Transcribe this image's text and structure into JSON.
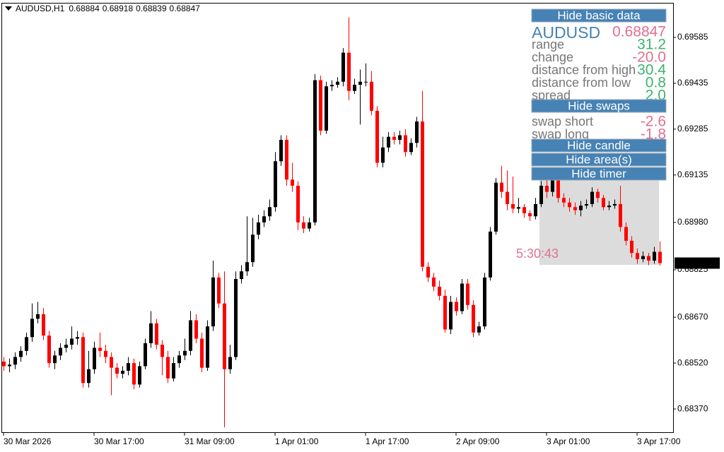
{
  "chart_data": {
    "type": "candlestick",
    "title": "AUDUSD,H1",
    "open": [
      0.68525,
      0.6851,
      0.68515,
      0.6854,
      0.6856,
      0.68605,
      0.68665,
      0.6868,
      0.6861,
      0.6852,
      0.68545,
      0.6857,
      0.6858,
      0.686,
      0.68605,
      0.68455,
      0.685,
      0.6857,
      0.6856,
      0.6854,
      0.68505,
      0.68485,
      0.68495,
      0.6852,
      0.6845,
      0.6851,
      0.68585,
      0.6865,
      0.6858,
      0.6854,
      0.6847,
      0.6852,
      0.68545,
      0.6856,
      0.6866,
      0.686,
      0.68505,
      0.6864,
      0.688,
      0.68715,
      0.685,
      0.6854,
      0.68795,
      0.6882,
      0.6885,
      0.6894,
      0.6898,
      0.69,
      0.6903,
      0.6918,
      0.6925,
      0.6912,
      0.691,
      0.6898,
      0.6896,
      0.6898,
      0.69445,
      0.6928,
      0.69425,
      0.6943,
      0.6944,
      0.69535,
      0.6941,
      0.6943,
      0.6944,
      0.6944,
      0.69345,
      0.69175,
      0.69225,
      0.6926,
      0.6925,
      0.69265,
      0.6921,
      0.6924,
      0.6931,
      0.68835,
      0.688,
      0.6877,
      0.6874,
      0.6863,
      0.6872,
      0.6869,
      0.6878,
      0.6871,
      0.6862,
      0.6864,
      0.688,
      0.6895,
      0.6911,
      0.6908,
      0.6904,
      0.69025,
      0.6903,
      0.6901,
      0.69,
      0.6904,
      0.691,
      0.6908,
      0.6912,
      0.6906,
      0.69045,
      0.6903,
      0.6902,
      0.69035,
      0.6904,
      0.6908,
      0.6906,
      0.6903,
      0.69035,
      0.6904,
      0.68965,
      0.6892,
      0.6888,
      0.6886,
      0.6887,
      0.68855,
      0.68884
    ],
    "high": [
      0.6854,
      0.68535,
      0.68555,
      0.68575,
      0.6862,
      0.68715,
      0.6872,
      0.687,
      0.68625,
      0.6856,
      0.68585,
      0.686,
      0.6864,
      0.68625,
      0.6862,
      0.6856,
      0.6859,
      0.6862,
      0.6858,
      0.68555,
      0.6852,
      0.6851,
      0.6854,
      0.68535,
      0.68525,
      0.686,
      0.6869,
      0.68665,
      0.68595,
      0.6856,
      0.6854,
      0.6856,
      0.686,
      0.6869,
      0.6868,
      0.6862,
      0.6866,
      0.68855,
      0.68815,
      0.6882,
      0.6858,
      0.6882,
      0.6884,
      0.69,
      0.68995,
      0.69005,
      0.6902,
      0.69055,
      0.6921,
      0.69265,
      0.69265,
      0.69175,
      0.69115,
      0.69,
      0.68995,
      0.69465,
      0.6946,
      0.6944,
      0.69445,
      0.69455,
      0.6955,
      0.6965,
      0.6945,
      0.6948,
      0.695,
      0.69475,
      0.6936,
      0.6926,
      0.69275,
      0.69275,
      0.6928,
      0.69285,
      0.69255,
      0.69325,
      0.6941,
      0.6885,
      0.68815,
      0.6879,
      0.6876,
      0.6874,
      0.68735,
      0.68795,
      0.68795,
      0.68725,
      0.68655,
      0.68815,
      0.68965,
      0.69125,
      0.69165,
      0.6915,
      0.6913,
      0.6906,
      0.6904,
      0.6902,
      0.6906,
      0.69115,
      0.6912,
      0.69135,
      0.6913,
      0.69075,
      0.6906,
      0.69045,
      0.6905,
      0.69055,
      0.69095,
      0.6909,
      0.6907,
      0.6905,
      0.69055,
      0.691,
      0.6898,
      0.68935,
      0.68895,
      0.68885,
      0.6888,
      0.689,
      0.68918
    ],
    "low": [
      0.68495,
      0.6849,
      0.685,
      0.68525,
      0.68545,
      0.6859,
      0.6865,
      0.68595,
      0.68505,
      0.685,
      0.6853,
      0.68555,
      0.68565,
      0.6858,
      0.6844,
      0.6844,
      0.68485,
      0.6854,
      0.6852,
      0.68415,
      0.6847,
      0.6847,
      0.6848,
      0.68435,
      0.6844,
      0.685,
      0.6857,
      0.68565,
      0.6848,
      0.68455,
      0.6846,
      0.68505,
      0.6853,
      0.68545,
      0.68585,
      0.6849,
      0.68495,
      0.68625,
      0.687,
      0.6831,
      0.68485,
      0.6853,
      0.6878,
      0.68805,
      0.68835,
      0.68925,
      0.68965,
      0.68985,
      0.69015,
      0.69165,
      0.691,
      0.6908,
      0.68955,
      0.68945,
      0.6895,
      0.6897,
      0.69265,
      0.6927,
      0.6941,
      0.6942,
      0.69425,
      0.6938,
      0.694,
      0.693,
      0.69425,
      0.6933,
      0.6916,
      0.6916,
      0.6921,
      0.69235,
      0.69235,
      0.69195,
      0.692,
      0.69225,
      0.6882,
      0.68785,
      0.68755,
      0.68725,
      0.6862,
      0.68615,
      0.68675,
      0.6868,
      0.68695,
      0.68605,
      0.6861,
      0.6863,
      0.6879,
      0.6894,
      0.6906,
      0.6902,
      0.6901,
      0.6901,
      0.68995,
      0.68985,
      0.6899,
      0.6903,
      0.6906,
      0.69065,
      0.69045,
      0.6903,
      0.69015,
      0.69005,
      0.69,
      0.69025,
      0.6903,
      0.69045,
      0.6902,
      0.6902,
      0.69025,
      0.6895,
      0.68905,
      0.68865,
      0.68845,
      0.6885,
      0.6884,
      0.68845,
      0.68839
    ],
    "close": [
      0.6851,
      0.68515,
      0.6854,
      0.6856,
      0.68605,
      0.68665,
      0.6868,
      0.6861,
      0.6852,
      0.68545,
      0.6857,
      0.6858,
      0.686,
      0.68605,
      0.68455,
      0.685,
      0.6857,
      0.6856,
      0.6854,
      0.68505,
      0.68485,
      0.68495,
      0.6852,
      0.6845,
      0.6851,
      0.68585,
      0.6865,
      0.6858,
      0.6854,
      0.6847,
      0.6852,
      0.68545,
      0.6856,
      0.6866,
      0.686,
      0.68505,
      0.6864,
      0.688,
      0.68715,
      0.685,
      0.6854,
      0.68795,
      0.6882,
      0.6885,
      0.6894,
      0.6898,
      0.69,
      0.6903,
      0.6918,
      0.6925,
      0.6912,
      0.691,
      0.6898,
      0.6896,
      0.6898,
      0.69445,
      0.6928,
      0.69425,
      0.6943,
      0.6944,
      0.69535,
      0.6941,
      0.6943,
      0.6944,
      0.6944,
      0.69345,
      0.69175,
      0.69225,
      0.6926,
      0.6925,
      0.69265,
      0.6921,
      0.6924,
      0.6931,
      0.68835,
      0.688,
      0.6877,
      0.6874,
      0.6863,
      0.6872,
      0.6869,
      0.6878,
      0.6871,
      0.6862,
      0.6864,
      0.688,
      0.6895,
      0.6911,
      0.6908,
      0.6904,
      0.69025,
      0.6903,
      0.6901,
      0.69,
      0.6904,
      0.691,
      0.6908,
      0.6912,
      0.6906,
      0.69045,
      0.6903,
      0.6902,
      0.69035,
      0.6904,
      0.6908,
      0.6906,
      0.6903,
      0.69035,
      0.6904,
      0.68965,
      0.6892,
      0.6888,
      0.6886,
      0.6887,
      0.68855,
      0.68884,
      0.68847
    ],
    "up_color": "#000000",
    "down_color": "#ff0000",
    "ylim": [
      0.68294,
      0.69698
    ],
    "yticks": [
      0.69585,
      0.69435,
      0.69285,
      0.69135,
      {
        "value": 0.6898,
        "label": "0.68980"
      },
      0.68825,
      {
        "value": 0.6867,
        "label": "0.68670"
      },
      {
        "value": 0.6852,
        "label": "0.68520"
      },
      {
        "value": 0.6837,
        "label": "0.68370"
      }
    ],
    "xticks": [
      {
        "value": 0,
        "label": "30 Mar 2026"
      },
      {
        "value": 16,
        "label": "30 Mar 17:00"
      },
      {
        "value": 32,
        "label": "31 Mar 09:00"
      },
      {
        "value": 48,
        "label": "1 Apr 01:00"
      },
      {
        "value": 64,
        "label": "1 Apr 17:00"
      },
      {
        "value": 80,
        "label": "2 Apr 09:00"
      },
      {
        "value": 96,
        "label": "3 Apr 01:00"
      },
      {
        "value": 112,
        "label": "3 Apr 17:00"
      }
    ]
  },
  "panel": {
    "btn_basic": "Hide basic data",
    "symbol": "AUDUSD",
    "rows": [
      [
        "range",
        "31.2"
      ],
      [
        "change",
        "-20.0"
      ],
      [
        "distance from high",
        "30.4"
      ],
      [
        "distance from low",
        "0.8"
      ],
      [
        "spread",
        "2.0"
      ]
    ],
    "btn_swaps": "Hide swaps",
    "swaps": [
      [
        "swap short",
        "-2.6"
      ],
      [
        "swap long",
        "-1.8"
      ]
    ],
    "btn_candle": "Hide candle",
    "btn_area": "Hide area(s)",
    "btn_timer": "Hide timer",
    "timer": "5:30:43"
  }
}
